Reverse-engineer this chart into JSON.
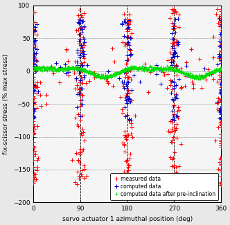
{
  "title": "",
  "xlabel": "servo actuator 1 azimuthal position (deg)",
  "ylabel": "fix-scissor stress (% max stress)",
  "xlim": [
    0,
    360
  ],
  "ylim": [
    -200,
    100
  ],
  "yticks": [
    100,
    50,
    0,
    -50,
    -100,
    -150,
    -200
  ],
  "xticks": [
    0,
    90,
    180,
    270,
    360
  ],
  "vlines": [
    90,
    180,
    270
  ],
  "red_color": "#ff0000",
  "blue_color": "#0000cc",
  "green_color": "#00dd00",
  "legend_labels": [
    "measured data",
    "computed data",
    "computed data after pre-inclination"
  ],
  "figsize": [
    3.32,
    3.25
  ],
  "dpi": 100,
  "bg_color": "#f0f0f0"
}
